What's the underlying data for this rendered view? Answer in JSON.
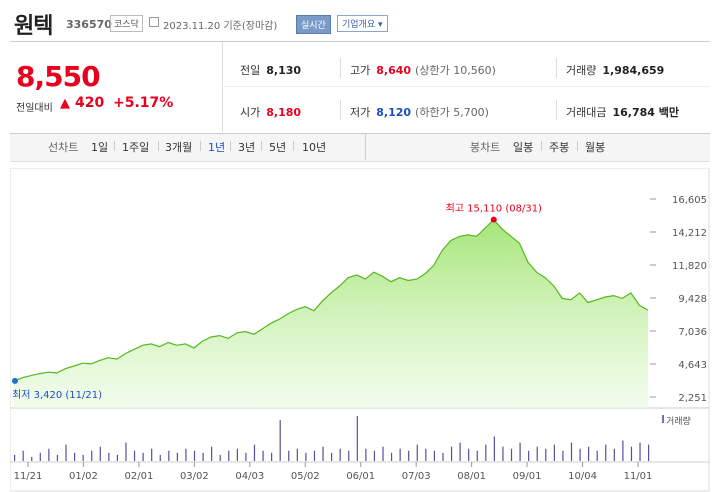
{
  "header": {
    "name": "원텍",
    "code": "336570",
    "market": "코스닥",
    "date": "2023.11.20",
    "basis": "기준(장마감)",
    "realtime": "실시간",
    "company_info": "기업개요 ▾"
  },
  "quote": {
    "price": "8,550",
    "change_label": "전일대비",
    "change_arrow": "▲",
    "change_value": "420",
    "change_pct": "+5.17%"
  },
  "stats": {
    "prev_label": "전일",
    "prev": "8,130",
    "high_label": "고가",
    "high": "8,640",
    "upper": "(상한가 10,560)",
    "volume_label": "거래량",
    "volume": "1,984,659",
    "open_label": "시가",
    "open": "8,180",
    "low_label": "저가",
    "low": "8,120",
    "lower": "(하한가 5,700)",
    "amount_label": "거래대금",
    "amount": "16,784 백만"
  },
  "tabs": {
    "line_label": "선차트",
    "line_items": [
      "1일",
      "1주일",
      "3개월",
      "1년",
      "3년",
      "5년",
      "10년"
    ],
    "line_active": "1년",
    "candle_label": "봉차트",
    "candle_items": [
      "일봉",
      "주봉",
      "월봉"
    ]
  },
  "chart_data": {
    "type": "area",
    "y_ticks": [
      "16,605",
      "14,212",
      "11,820",
      "9,428",
      "7,036",
      "4,643",
      "2,251"
    ],
    "ylim": [
      2251,
      16605
    ],
    "x_ticks": [
      "11/21",
      "01/02",
      "02/01",
      "03/02",
      "04/03",
      "05/02",
      "06/01",
      "07/03",
      "08/01",
      "09/01",
      "10/04",
      "11/01"
    ],
    "max_label": "최고 15,110 (08/31)",
    "min_label": "최저 3,420 (11/21)",
    "volume_label": "거래량",
    "series": [
      {
        "values": [
          3420,
          3650,
          3800,
          3950,
          4050,
          4000,
          4300,
          4500,
          4700,
          4650,
          4900,
          5100,
          5000,
          5400,
          5700,
          6000,
          6100,
          5900,
          6200,
          6000,
          6100,
          5800,
          6300,
          6600,
          6700,
          6500,
          6900,
          7000,
          6800,
          7200,
          7600,
          7900,
          8300,
          8600,
          8800,
          8500,
          9200,
          9800,
          10300,
          10900,
          11100,
          10800,
          11300,
          11000,
          10600,
          10900,
          10700,
          10800,
          11200,
          11800,
          12900,
          13600,
          13900,
          14000,
          13900,
          14500,
          15110,
          14400,
          13900,
          13400,
          12000,
          11300,
          10900,
          10300,
          9400,
          9300,
          9800,
          9100,
          9300,
          9500,
          9600,
          9400,
          9800,
          8900,
          8550
        ]
      }
    ],
    "volume": [
      3,
      5,
      2,
      4,
      6,
      3,
      8,
      4,
      3,
      5,
      7,
      4,
      3,
      9,
      5,
      4,
      6,
      3,
      5,
      4,
      6,
      5,
      4,
      7,
      3,
      5,
      6,
      4,
      8,
      5,
      4,
      20,
      5,
      6,
      4,
      5,
      7,
      4,
      6,
      5,
      22,
      6,
      5,
      7,
      4,
      6,
      5,
      8,
      6,
      5,
      4,
      7,
      9,
      6,
      5,
      8,
      12,
      7,
      6,
      9,
      5,
      7,
      6,
      8,
      5,
      9,
      6,
      7,
      5,
      8,
      6,
      10,
      7,
      9,
      8
    ]
  }
}
